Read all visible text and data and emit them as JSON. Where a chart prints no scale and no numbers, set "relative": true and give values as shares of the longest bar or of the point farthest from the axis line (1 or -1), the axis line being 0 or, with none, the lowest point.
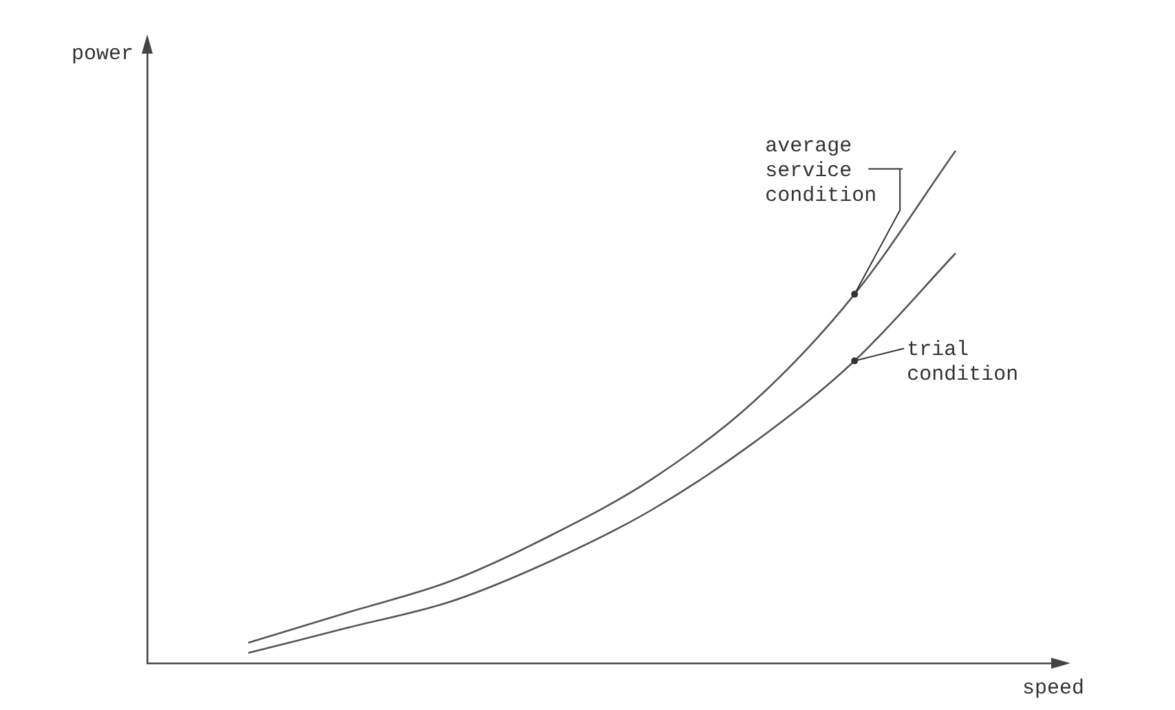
{
  "chart_data": {
    "type": "line",
    "relative": true,
    "xlabel": "speed",
    "ylabel": "power",
    "marker": "none",
    "line_style": "solid",
    "grid": false,
    "legend": "right",
    "categories": [
      null,
      null,
      null,
      null,
      null,
      null,
      null,
      null,
      null,
      null
    ],
    "series": [
      {
        "name": "average service condition",
        "color": "#555555",
        "values": [
          null,
          0.04,
          0.1,
          0.16,
          0.25,
          0.36,
          0.51,
          0.72,
          1.0,
          null
        ]
      },
      {
        "name": "trial condition",
        "color": "#555555",
        "values": [
          null,
          0.02,
          0.07,
          0.12,
          0.2,
          0.3,
          0.43,
          0.59,
          0.8,
          null
        ]
      }
    ]
  }
}
